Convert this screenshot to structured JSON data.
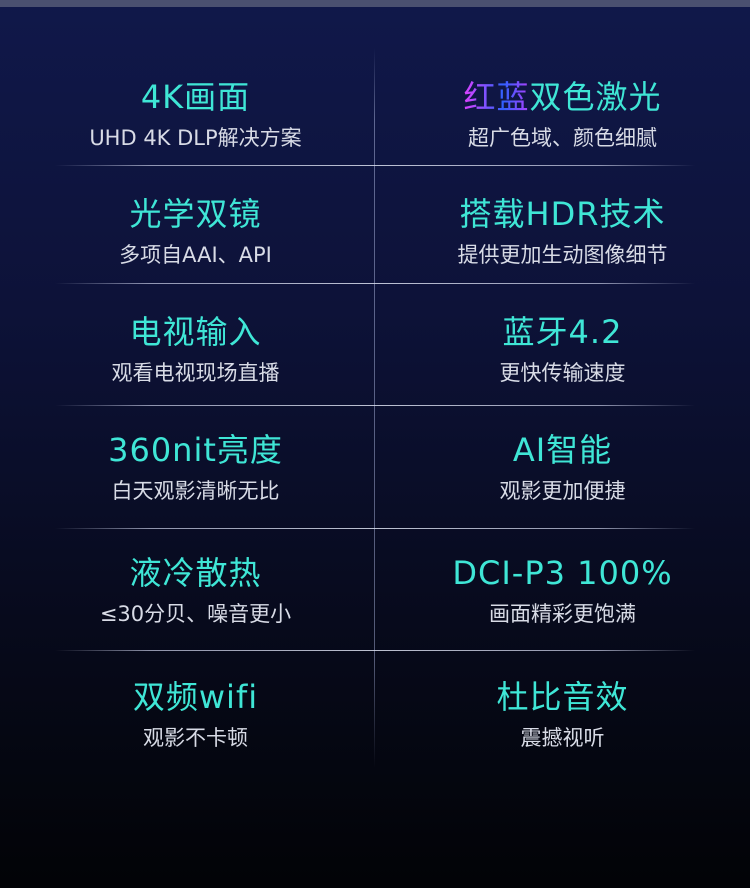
{
  "accent_color": "#3fe6d6",
  "features": [
    {
      "title": "4K画面",
      "subtitle": "UHD 4K DLP解决方案"
    },
    {
      "title_highlight": "红蓝",
      "title": "双色激光",
      "subtitle": "超广色域、颜色细腻"
    },
    {
      "title": "光学双镜",
      "subtitle": "多项自AAI、API"
    },
    {
      "title": "搭载HDR技术",
      "subtitle": "提供更加生动图像细节"
    },
    {
      "title": "电视输入",
      "subtitle": "观看电视现场直播"
    },
    {
      "title": "蓝牙4.2",
      "subtitle": "更快传输速度"
    },
    {
      "title": "360nit亮度",
      "subtitle": "白天观影清晰无比"
    },
    {
      "title": "AI智能",
      "subtitle": "观影更加便捷"
    },
    {
      "title": "液冷散热",
      "subtitle": "≤30分贝、噪音更小"
    },
    {
      "title": "DCI-P3 100%",
      "subtitle": "画面精彩更饱满"
    },
    {
      "title": "双频wifi",
      "subtitle": "观影不卡顿"
    },
    {
      "title": "杜比音效",
      "subtitle": "震撼视听"
    }
  ]
}
